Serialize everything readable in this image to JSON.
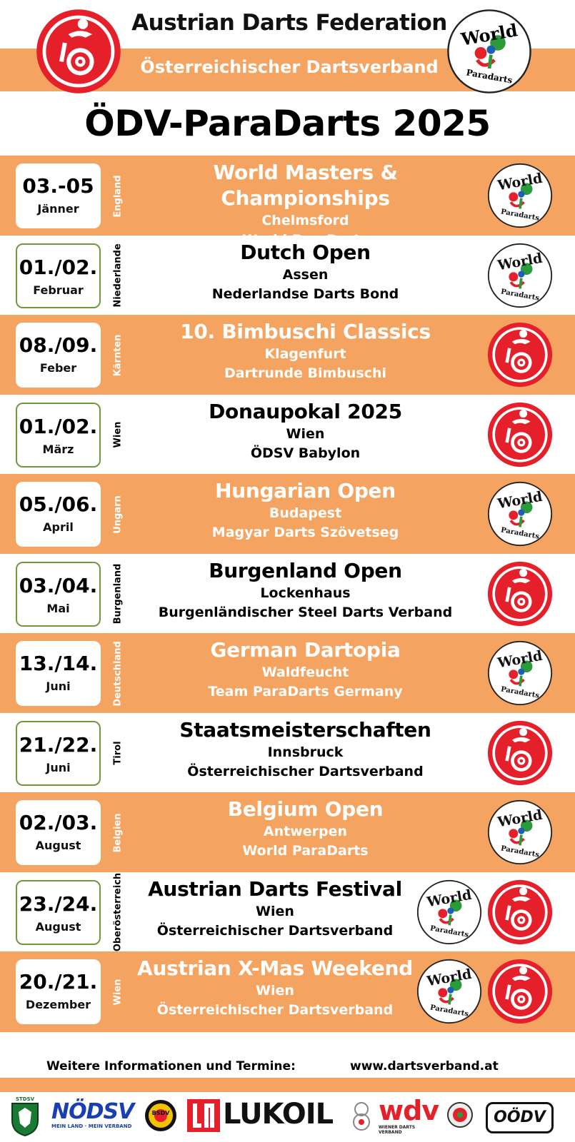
{
  "header": {
    "title": "Austrian Darts Federation",
    "subtitle": "Österreichischer Dartsverband",
    "main_title": "ÖDV-ParaDarts 2025"
  },
  "world_logo": {
    "line1": "World",
    "line2": "Paradarts"
  },
  "events": [
    {
      "date": "03.-05",
      "month": "Jänner",
      "region": "England",
      "title": "World Masters & Championships",
      "city": "Chelmsford",
      "organizer": "World ParaDarts"
    },
    {
      "date": "01./02.",
      "month": "Februar",
      "region": "Niederlande",
      "title": "Dutch Open",
      "city": "Assen",
      "organizer": "Nederlandse Darts Bond"
    },
    {
      "date": "08./09.",
      "month": "Feber",
      "region": "Kärnten",
      "title": "10. Bimbuschi Classics",
      "city": "Klagenfurt",
      "organizer": "Dartrunde Bimbuschi"
    },
    {
      "date": "01./02.",
      "month": "März",
      "region": "Wien",
      "title": "Donaupokal 2025",
      "city": "Wien",
      "organizer": "ÖDSV Babylon"
    },
    {
      "date": "05./06.",
      "month": "April",
      "region": "Ungarn",
      "title": "Hungarian Open",
      "city": "Budapest",
      "organizer": "Magyar Darts Szövetseg"
    },
    {
      "date": "03./04.",
      "month": "Mai",
      "region": "Burgenland",
      "title": "Burgenland Open",
      "city": "Lockenhaus",
      "organizer": "Burgenländischer Steel Darts Verband"
    },
    {
      "date": "13./14.",
      "month": "Juni",
      "region": "Deutschland",
      "title": "German Dartopia",
      "city": "Waldfeucht",
      "organizer": "Team ParaDarts Germany"
    },
    {
      "date": "21./22.",
      "month": "Juni",
      "region": "Tirol",
      "title": "Staatsmeisterschaften",
      "city": "Innsbruck",
      "organizer": "Österreichischer Dartsverband"
    },
    {
      "date": "02./03.",
      "month": "August",
      "region": "Belgien",
      "title": "Belgium Open",
      "city": "Antwerpen",
      "organizer": "World ParaDarts"
    },
    {
      "date": "23./24.",
      "month": "August",
      "region": "Oberösterreich",
      "title": "Austrian Darts Festival",
      "city": "Wien",
      "organizer": "Österreichischer Dartsverband"
    },
    {
      "date": "20./21.",
      "month": "Dezember",
      "region": "Wien",
      "title": "Austrian X-Mas Weekend",
      "city": "Wien",
      "organizer": "Österreichischer Dartsverband"
    }
  ],
  "footer": {
    "info_label": "Weitere Informationen und Termine:",
    "website": "www.dartsverband.at"
  },
  "sponsors": {
    "stdsv": "STDSV",
    "nodsv": "NÖDSV",
    "nodsv_tagline": "MEIN LAND · MEIN VERBAND",
    "bsdv": "BSDV",
    "lukoil": "LUKOIL",
    "wdv": "wdv",
    "wdv_tagline": "WIENER DARTS VERBAND",
    "oodv": "OÖDV"
  },
  "colors": {
    "orange": "#f4a460",
    "red": "#e5202a",
    "green_border": "#6f9a3c"
  }
}
